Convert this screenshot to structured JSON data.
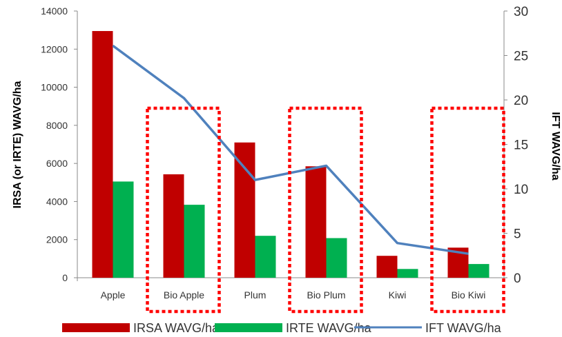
{
  "chart_data": {
    "type": "bar",
    "categories": [
      "Apple",
      "Bio Apple",
      "Plum",
      "Bio Plum",
      "Kiwi",
      "Bio Kiwi"
    ],
    "series": [
      {
        "name": "IRSA WAVG/ha",
        "type": "bar",
        "axis": "left",
        "color": "#c00000",
        "values": [
          12950,
          5430,
          7100,
          5850,
          1150,
          1580
        ]
      },
      {
        "name": "IRTE WAVG/ha",
        "type": "bar",
        "axis": "left",
        "color": "#00b050",
        "values": [
          5050,
          3830,
          2200,
          2080,
          460,
          720
        ]
      },
      {
        "name": "IFT WAVG/ha",
        "type": "line",
        "axis": "right",
        "color": "#4f81bd",
        "values": [
          26.1,
          20.2,
          11.0,
          12.6,
          3.9,
          2.7
        ]
      }
    ],
    "ylabel": "IRSA (or IRTE) WAVG/ha",
    "y2label": "IFT WAVG/ha",
    "ylim": [
      0,
      14000
    ],
    "y2lim": [
      0,
      30
    ],
    "yticks": [
      "0",
      "2000",
      "4000",
      "6000",
      "8000",
      "10000",
      "12000",
      "14000"
    ],
    "y2ticks": [
      "0",
      "5",
      "10",
      "15",
      "20",
      "25",
      "30"
    ],
    "highlighted_categories": [
      "Bio Apple",
      "Bio Plum",
      "Bio Kiwi"
    ],
    "highlight_color": "#ff0000",
    "grid": false,
    "legend": "bottom"
  }
}
